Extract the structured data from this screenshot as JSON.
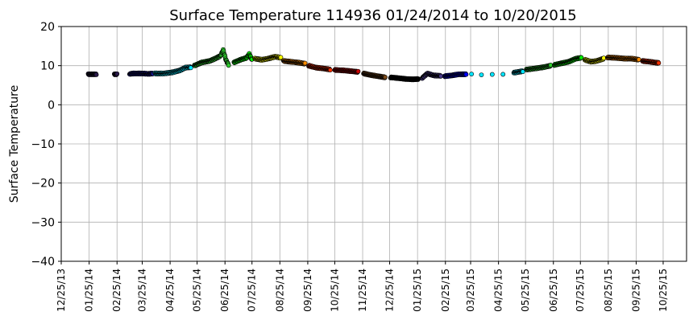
{
  "chart_data": {
    "type": "scatter",
    "title": "Surface Temperature 114936  01/24/2014 to 10/20/2015",
    "xlabel": "",
    "ylabel": "Surface Temperature",
    "ylim": [
      -40,
      20
    ],
    "xlim": [
      "2013-12-25",
      "2015-11-20"
    ],
    "y_ticks": [
      -40,
      -30,
      -20,
      -10,
      0,
      10,
      20
    ],
    "y_tick_labels": [
      "−40",
      "−30",
      "−20",
      "−10",
      "0",
      "10",
      "20"
    ],
    "x_ticks": [
      "2013-12-25",
      "2014-01-25",
      "2014-02-25",
      "2014-03-25",
      "2014-04-25",
      "2014-05-25",
      "2014-06-25",
      "2014-07-25",
      "2014-08-25",
      "2014-09-25",
      "2014-10-25",
      "2014-11-25",
      "2014-12-25",
      "2015-01-25",
      "2015-02-25",
      "2015-03-25",
      "2015-04-25",
      "2015-05-25",
      "2015-06-25",
      "2015-07-25",
      "2015-08-25",
      "2015-09-25",
      "2015-10-25"
    ],
    "x_tick_labels": [
      "12/25/13",
      "01/25/14",
      "02/25/14",
      "03/25/14",
      "04/25/14",
      "05/25/14",
      "06/25/14",
      "07/25/14",
      "08/25/14",
      "09/25/14",
      "10/25/14",
      "11/25/14",
      "12/25/14",
      "01/25/15",
      "02/25/15",
      "03/25/15",
      "04/25/15",
      "05/25/15",
      "06/25/15",
      "07/25/15",
      "08/25/15",
      "09/25/15",
      "10/25/15"
    ],
    "grid": true,
    "marker_edge_color": "#000000",
    "color_cycle": [
      "#2a1a4a",
      "#1a1aa0",
      "#0000ff",
      "#00e5ff",
      "#2ecc2e",
      "#00ee00",
      "#ffff00",
      "#ff8c00",
      "#ff3300",
      "#cc0000",
      "#7a4a1a",
      "#000000",
      "#4a3a8a"
    ],
    "series": [
      {
        "color": "#2a1a4a",
        "points": [
          [
            "2014-01-24",
            7.8
          ],
          [
            "2014-01-27",
            7.8
          ],
          [
            "2014-01-30",
            7.8
          ],
          [
            "2014-02-02",
            7.8
          ],
          [
            "2014-02-22",
            7.8
          ],
          [
            "2014-02-25",
            7.8
          ]
        ]
      },
      {
        "color": "#1a1aa0",
        "points": [
          [
            "2014-03-11",
            7.9
          ],
          [
            "2014-03-16",
            8.0
          ],
          [
            "2014-03-21",
            8.0
          ],
          [
            "2014-03-26",
            8.0
          ],
          [
            "2014-04-01",
            7.9
          ],
          [
            "2014-04-06",
            8.0
          ]
        ]
      },
      {
        "color": "#00e5ff",
        "points": [
          [
            "2014-04-08",
            8.0
          ],
          [
            "2014-04-18",
            8.0
          ],
          [
            "2014-04-28",
            8.3
          ],
          [
            "2014-05-06",
            8.8
          ],
          [
            "2014-05-12",
            9.5
          ],
          [
            "2014-05-18",
            9.6
          ]
        ]
      },
      {
        "color": "#2ecc2e",
        "points": [
          [
            "2014-05-22",
            10.0
          ],
          [
            "2014-05-30",
            10.8
          ],
          [
            "2014-06-08",
            11.2
          ],
          [
            "2014-06-14",
            11.8
          ],
          [
            "2014-06-20",
            12.5
          ],
          [
            "2014-06-23",
            14.0
          ],
          [
            "2014-06-26",
            11.5
          ],
          [
            "2014-06-29",
            10.2
          ]
        ]
      },
      {
        "color": "#00ee00",
        "points": [
          [
            "2014-07-05",
            10.8
          ],
          [
            "2014-07-12",
            11.5
          ],
          [
            "2014-07-19",
            12.0
          ],
          [
            "2014-07-22",
            13.0
          ],
          [
            "2014-07-25",
            11.5
          ]
        ]
      },
      {
        "color": "#ffff00",
        "points": [
          [
            "2014-07-28",
            11.8
          ],
          [
            "2014-08-05",
            11.5
          ],
          [
            "2014-08-12",
            11.8
          ],
          [
            "2014-08-20",
            12.3
          ],
          [
            "2014-08-26",
            12.0
          ]
        ]
      },
      {
        "color": "#ff8c00",
        "points": [
          [
            "2014-08-29",
            11.2
          ],
          [
            "2014-09-06",
            11.0
          ],
          [
            "2014-09-14",
            10.8
          ],
          [
            "2014-09-22",
            10.5
          ]
        ]
      },
      {
        "color": "#ff3300",
        "points": [
          [
            "2014-09-26",
            10.0
          ],
          [
            "2014-10-04",
            9.5
          ],
          [
            "2014-10-12",
            9.3
          ],
          [
            "2014-10-20",
            9.0
          ]
        ]
      },
      {
        "color": "#cc0000",
        "points": [
          [
            "2014-10-25",
            8.9
          ],
          [
            "2014-11-03",
            8.8
          ],
          [
            "2014-11-12",
            8.6
          ],
          [
            "2014-11-20",
            8.4
          ]
        ]
      },
      {
        "color": "#7a4a1a",
        "points": [
          [
            "2014-11-26",
            8.0
          ],
          [
            "2014-12-04",
            7.6
          ],
          [
            "2014-12-12",
            7.3
          ],
          [
            "2014-12-20",
            7.0
          ]
        ]
      },
      {
        "color": "#000000",
        "points": [
          [
            "2014-12-26",
            7.0
          ],
          [
            "2015-01-04",
            6.8
          ],
          [
            "2015-01-12",
            6.6
          ],
          [
            "2015-01-20",
            6.5
          ],
          [
            "2015-01-26",
            6.6
          ]
        ]
      },
      {
        "color": "#4a3a8a",
        "points": [
          [
            "2015-01-30",
            6.8
          ],
          [
            "2015-02-05",
            8.0
          ],
          [
            "2015-02-12",
            7.5
          ],
          [
            "2015-02-20",
            7.4
          ]
        ]
      },
      {
        "color": "#0000ff",
        "points": [
          [
            "2015-02-24",
            7.3
          ],
          [
            "2015-03-04",
            7.5
          ],
          [
            "2015-03-12",
            7.8
          ],
          [
            "2015-03-20",
            7.8
          ]
        ]
      },
      {
        "color": "#00e5ff",
        "points": [
          [
            "2015-03-26",
            7.7
          ],
          [
            "2015-04-06",
            7.8
          ],
          [
            "2015-04-18",
            7.9
          ],
          [
            "2015-04-30",
            7.9
          ],
          [
            "2015-05-12",
            8.2
          ],
          [
            "2015-05-22",
            8.6
          ]
        ]
      },
      {
        "color": "#2ecc2e",
        "points": [
          [
            "2015-05-26",
            9.0
          ],
          [
            "2015-06-05",
            9.3
          ],
          [
            "2015-06-14",
            9.6
          ],
          [
            "2015-06-22",
            10.0
          ]
        ]
      },
      {
        "color": "#00ee00",
        "points": [
          [
            "2015-06-26",
            10.2
          ],
          [
            "2015-07-04",
            10.6
          ],
          [
            "2015-07-12",
            11.0
          ],
          [
            "2015-07-20",
            11.8
          ],
          [
            "2015-07-26",
            12.0
          ]
        ]
      },
      {
        "color": "#ffff00",
        "points": [
          [
            "2015-07-30",
            11.5
          ],
          [
            "2015-08-06",
            11.0
          ],
          [
            "2015-08-12",
            11.2
          ],
          [
            "2015-08-20",
            11.8
          ]
        ]
      },
      {
        "color": "#ff8c00",
        "points": [
          [
            "2015-08-24",
            12.1
          ],
          [
            "2015-09-02",
            12.0
          ],
          [
            "2015-09-12",
            11.8
          ],
          [
            "2015-09-20",
            11.8
          ],
          [
            "2015-09-28",
            11.5
          ]
        ]
      },
      {
        "color": "#ff3300",
        "points": [
          [
            "2015-10-02",
            11.2
          ],
          [
            "2015-10-10",
            11.0
          ],
          [
            "2015-10-16",
            10.8
          ],
          [
            "2015-10-20",
            10.7
          ]
        ]
      }
    ]
  }
}
